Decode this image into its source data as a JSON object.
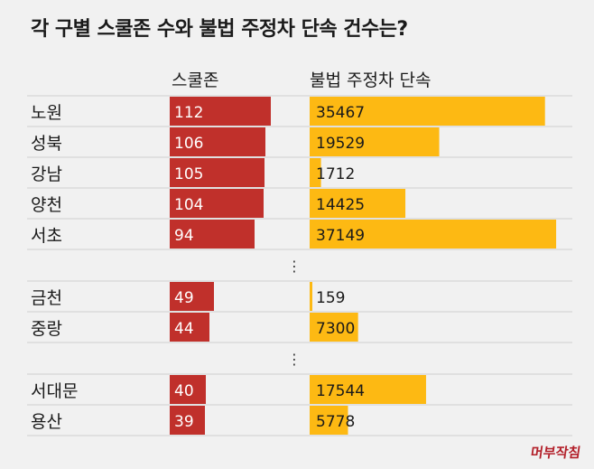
{
  "chart_data": {
    "type": "bar",
    "title": "각 구별 스쿨존 수와 불법 주정차 단속 건수는?",
    "series": [
      {
        "name": "스쿨존",
        "color": "#c0302b",
        "max": 118
      },
      {
        "name": "불법 주정차 단속",
        "color": "#fdb913",
        "max": 38500
      }
    ],
    "groups": [
      [
        {
          "label": "노원",
          "school_zones": 112,
          "illegal_parking": 35467
        },
        {
          "label": "성북",
          "school_zones": 106,
          "illegal_parking": 19529
        },
        {
          "label": "강남",
          "school_zones": 105,
          "illegal_parking": 1712
        },
        {
          "label": "양천",
          "school_zones": 104,
          "illegal_parking": 14425
        },
        {
          "label": "서초",
          "school_zones": 94,
          "illegal_parking": 37149
        }
      ],
      [
        {
          "label": "금천",
          "school_zones": 49,
          "illegal_parking": 159
        },
        {
          "label": "중랑",
          "school_zones": 44,
          "illegal_parking": 7300
        }
      ],
      [
        {
          "label": "서대문",
          "school_zones": 40,
          "illegal_parking": 17544
        },
        {
          "label": "용산",
          "school_zones": 39,
          "illegal_parking": 5778
        }
      ]
    ],
    "gap_marker": "⋮"
  },
  "logo_text": "머부작침"
}
